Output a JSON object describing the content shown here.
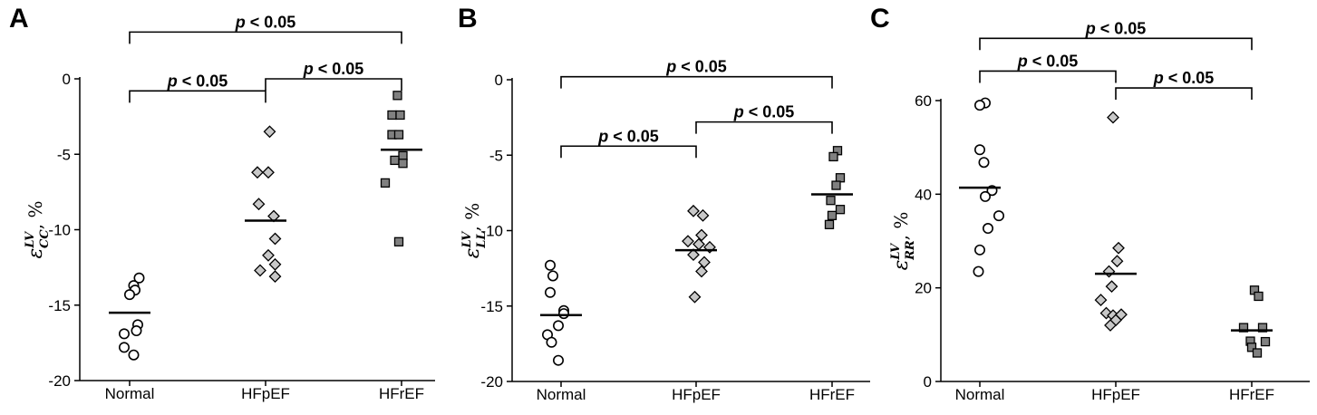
{
  "chart_data": [
    {
      "type": "scatter",
      "panel": "A",
      "ylabel": {
        "symbol": "ε",
        "sup": "LV",
        "sub": "CC",
        "suffix": ", %"
      },
      "ylim": [
        -20,
        0
      ],
      "yticks": [
        0,
        -5,
        -10,
        -15,
        -20
      ],
      "ytick_labels": [
        "0",
        "-5",
        "-10",
        "-15",
        "-20"
      ],
      "categories": [
        "Normal",
        "HFpEF",
        "HFrEF"
      ],
      "series": [
        {
          "category": "Normal",
          "marker": "circle",
          "mean": -15.5,
          "points": [
            [
              0.07,
              -13.2
            ],
            [
              0.03,
              -13.7
            ],
            [
              0.04,
              -14.0
            ],
            [
              0.0,
              -14.3
            ],
            [
              0.06,
              -16.3
            ],
            [
              -0.04,
              -16.9
            ],
            [
              0.05,
              -16.7
            ],
            [
              -0.04,
              -17.8
            ],
            [
              0.03,
              -18.3
            ]
          ]
        },
        {
          "category": "HFpEF",
          "marker": "diamond",
          "mean": -9.4,
          "points": [
            [
              0.03,
              -3.5
            ],
            [
              -0.06,
              -6.2
            ],
            [
              0.02,
              -6.2
            ],
            [
              -0.05,
              -8.3
            ],
            [
              0.06,
              -9.1
            ],
            [
              0.07,
              -10.6
            ],
            [
              0.02,
              -11.7
            ],
            [
              0.07,
              -12.3
            ],
            [
              -0.04,
              -12.7
            ],
            [
              0.07,
              -13.1
            ]
          ]
        },
        {
          "category": "HFrEF",
          "marker": "square",
          "mean": -4.7,
          "points": [
            [
              -0.03,
              -1.1
            ],
            [
              -0.07,
              -2.4
            ],
            [
              -0.01,
              -2.4
            ],
            [
              -0.07,
              -3.7
            ],
            [
              -0.02,
              -3.7
            ],
            [
              0.01,
              -5.1
            ],
            [
              -0.05,
              -5.4
            ],
            [
              0.01,
              -5.6
            ],
            [
              -0.12,
              -6.9
            ],
            [
              -0.02,
              -10.8
            ]
          ]
        }
      ],
      "brackets": [
        {
          "from": "Normal",
          "to": "HFpEF",
          "level": -0.8,
          "label": "p < 0.05"
        },
        {
          "from": "HFpEF",
          "to": "HFrEF",
          "level": 0.0,
          "label": "p < 0.05"
        },
        {
          "from": "Normal",
          "to": "HFrEF",
          "level": 3.1,
          "label": "p < 0.05"
        }
      ]
    },
    {
      "type": "scatter",
      "panel": "B",
      "ylabel": {
        "symbol": "ε",
        "sup": "LV",
        "sub": "LL",
        "suffix": ", %"
      },
      "ylim": [
        -20,
        0
      ],
      "yticks": [
        0,
        -5,
        -10,
        -15,
        -20
      ],
      "ytick_labels": [
        "0",
        "-5",
        "-10",
        "-15",
        "-20"
      ],
      "categories": [
        "Normal",
        "HFpEF",
        "HFrEF"
      ],
      "series": [
        {
          "category": "Normal",
          "marker": "circle",
          "mean": -15.6,
          "points": [
            [
              -0.08,
              -12.3
            ],
            [
              -0.06,
              -13.0
            ],
            [
              -0.08,
              -14.1
            ],
            [
              0.02,
              -15.3
            ],
            [
              0.02,
              -15.5
            ],
            [
              -0.02,
              -16.3
            ],
            [
              -0.1,
              -16.9
            ],
            [
              -0.07,
              -17.4
            ],
            [
              -0.02,
              -18.6
            ]
          ]
        },
        {
          "category": "HFpEF",
          "marker": "diamond",
          "mean": -11.3,
          "points": [
            [
              -0.02,
              -8.7
            ],
            [
              0.05,
              -9.0
            ],
            [
              0.04,
              -10.3
            ],
            [
              -0.06,
              -10.7
            ],
            [
              0.02,
              -10.9
            ],
            [
              0.1,
              -11.1
            ],
            [
              -0.02,
              -11.6
            ],
            [
              0.06,
              -12.1
            ],
            [
              0.04,
              -12.7
            ],
            [
              -0.01,
              -14.4
            ]
          ]
        },
        {
          "category": "HFrEF",
          "marker": "square",
          "mean": -7.6,
          "points": [
            [
              0.04,
              -4.7
            ],
            [
              0.01,
              -5.1
            ],
            [
              0.06,
              -6.5
            ],
            [
              0.03,
              -7.0
            ],
            [
              -0.01,
              -8.0
            ],
            [
              0.06,
              -8.6
            ],
            [
              0.0,
              -9.0
            ],
            [
              -0.02,
              -9.6
            ]
          ]
        }
      ],
      "brackets": [
        {
          "from": "Normal",
          "to": "HFpEF",
          "level": -4.4,
          "label": "p < 0.05"
        },
        {
          "from": "HFpEF",
          "to": "HFrEF",
          "level": -2.8,
          "label": "p < 0.05"
        },
        {
          "from": "Normal",
          "to": "HFrEF",
          "level": 0.2,
          "label": "p < 0.05"
        }
      ]
    },
    {
      "type": "scatter",
      "panel": "C",
      "ylabel": {
        "symbol": "ε",
        "sup": "LV",
        "sub": "RR",
        "suffix": ", %"
      },
      "ylim": [
        0,
        60
      ],
      "yticks": [
        0,
        20,
        40,
        60
      ],
      "ytick_labels": [
        "0",
        "20",
        "40",
        "60"
      ],
      "categories": [
        "Normal",
        "HFpEF",
        "HFrEF"
      ],
      "series": [
        {
          "category": "Normal",
          "marker": "circle",
          "mean": 41.4,
          "points": [
            [
              0.04,
              59.5
            ],
            [
              0.0,
              59.0
            ],
            [
              0.0,
              49.5
            ],
            [
              0.03,
              46.8
            ],
            [
              0.09,
              40.8
            ],
            [
              0.04,
              39.5
            ],
            [
              0.14,
              35.4
            ],
            [
              0.06,
              32.7
            ],
            [
              0.0,
              28.1
            ],
            [
              -0.01,
              23.5
            ]
          ]
        },
        {
          "category": "HFpEF",
          "marker": "diamond",
          "mean": 23.0,
          "points": [
            [
              -0.02,
              56.4
            ],
            [
              0.02,
              28.5
            ],
            [
              0.01,
              25.7
            ],
            [
              -0.05,
              23.5
            ],
            [
              -0.03,
              20.3
            ],
            [
              -0.11,
              17.4
            ],
            [
              -0.07,
              14.6
            ],
            [
              -0.02,
              14.1
            ],
            [
              0.0,
              13.1
            ],
            [
              -0.04,
              12.0
            ],
            [
              0.04,
              14.3
            ]
          ]
        },
        {
          "category": "HFrEF",
          "marker": "square",
          "mean": 10.9,
          "points": [
            [
              0.02,
              19.5
            ],
            [
              0.05,
              18.2
            ],
            [
              -0.06,
              11.5
            ],
            [
              0.08,
              11.5
            ],
            [
              -0.01,
              8.6
            ],
            [
              0.1,
              8.5
            ],
            [
              0.0,
              7.3
            ],
            [
              0.04,
              6.1
            ]
          ]
        }
      ],
      "brackets": [
        {
          "from": "Normal",
          "to": "HFpEF",
          "level": 66.3,
          "label": "p < 0.05"
        },
        {
          "from": "HFpEF",
          "to": "HFrEF",
          "level": 62.7,
          "label": "p < 0.05"
        },
        {
          "from": "Normal",
          "to": "HFrEF",
          "level": 73.3,
          "label": "p < 0.05"
        }
      ]
    }
  ]
}
